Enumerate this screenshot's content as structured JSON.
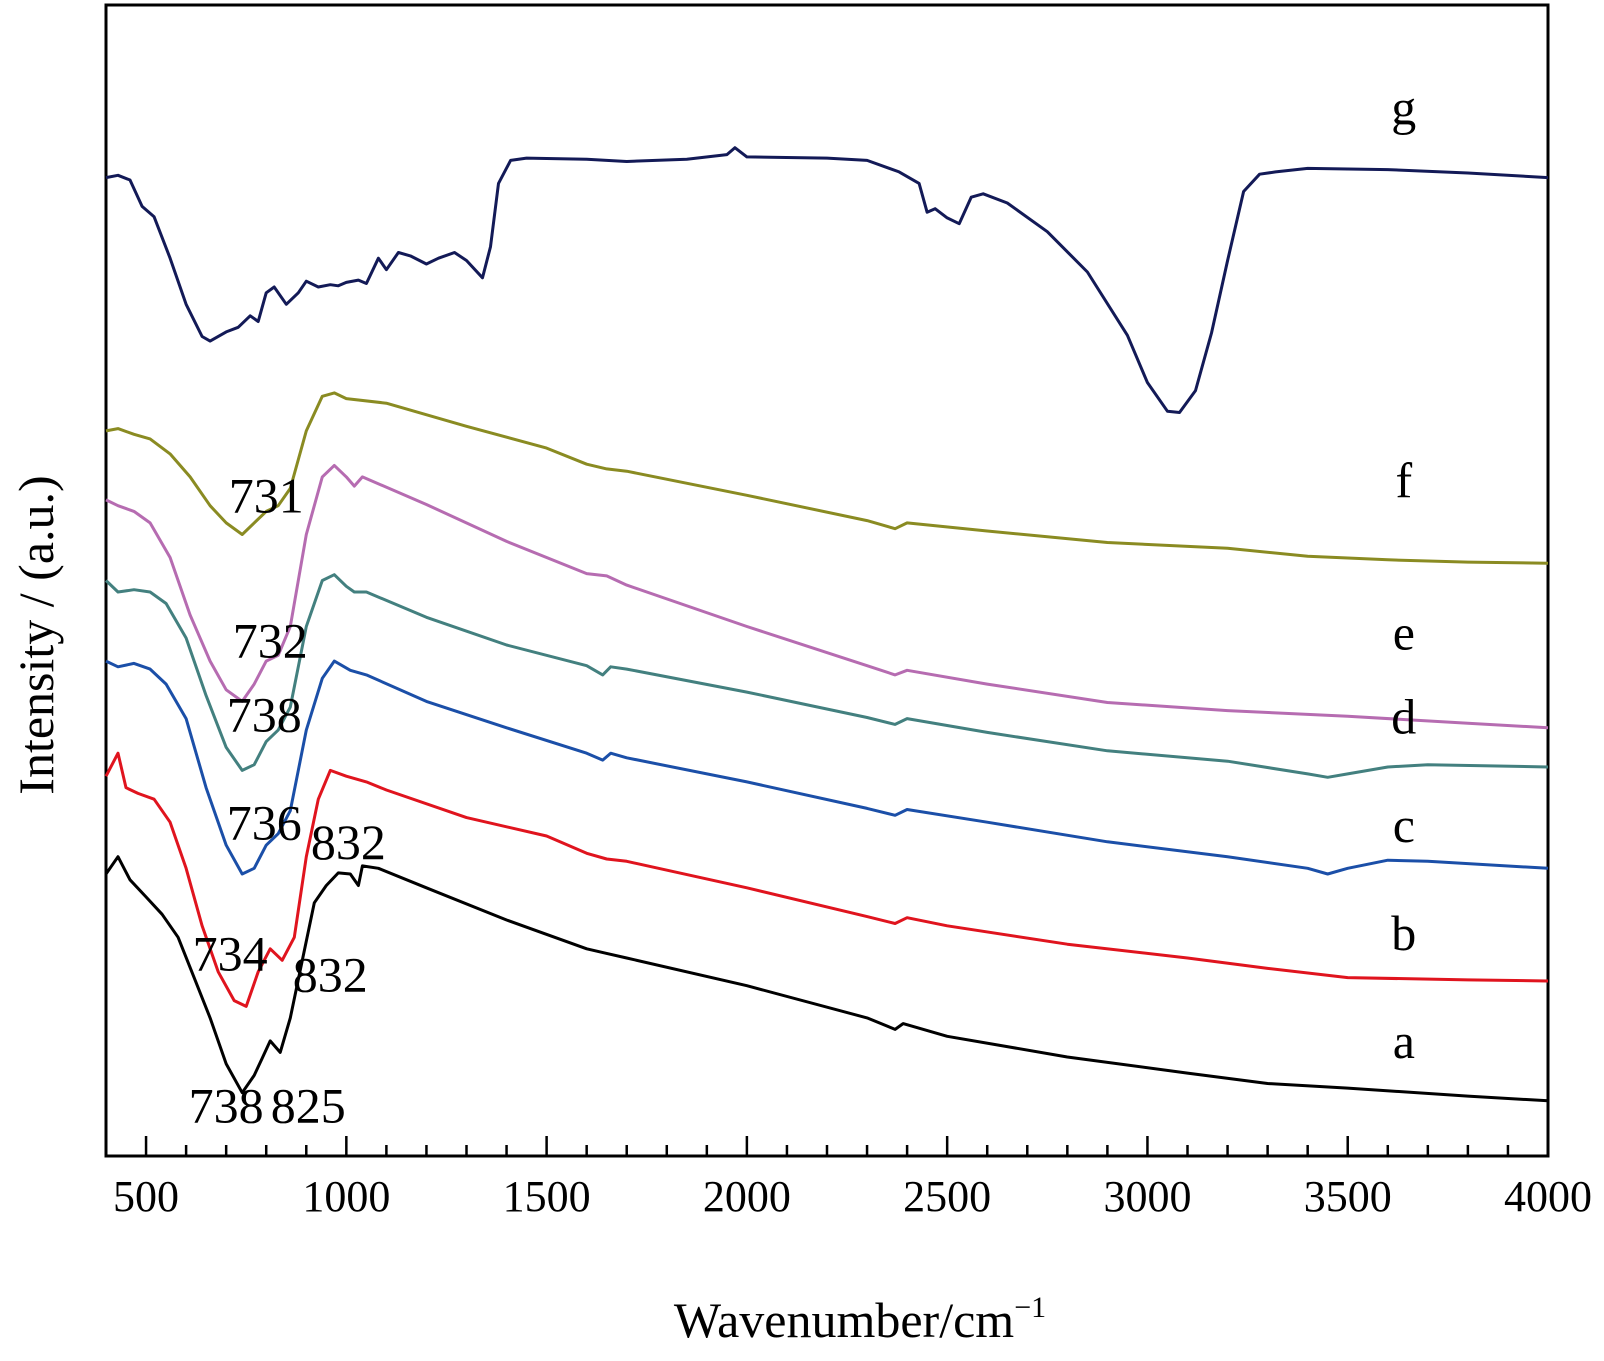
{
  "chart_data": {
    "type": "line",
    "title": "",
    "xlabel": "Wavenumber/cm",
    "xlabel_superscript": "−1",
    "ylabel": "Intensity / (a.u.)",
    "xlim": [
      400,
      4000
    ],
    "ylim": [
      0,
      100
    ],
    "x_ticks": [
      "500",
      "1000",
      "1500",
      "2000",
      "2500",
      "3000",
      "3500",
      "4000"
    ],
    "y_ticks": [],
    "grid": false,
    "series": [
      {
        "name": "a",
        "color": "#000000",
        "points": [
          [
            400,
            24.5
          ],
          [
            430,
            26
          ],
          [
            460,
            24
          ],
          [
            500,
            22.5
          ],
          [
            540,
            21
          ],
          [
            580,
            19
          ],
          [
            620,
            15.5
          ],
          [
            660,
            12
          ],
          [
            700,
            8
          ],
          [
            740,
            5.5
          ],
          [
            770,
            7
          ],
          [
            790,
            8.5
          ],
          [
            810,
            10
          ],
          [
            835,
            9
          ],
          [
            860,
            12
          ],
          [
            890,
            17
          ],
          [
            920,
            22
          ],
          [
            950,
            23.5
          ],
          [
            980,
            24.6
          ],
          [
            1010,
            24.5
          ],
          [
            1030,
            23.5
          ],
          [
            1040,
            25.2
          ],
          [
            1080,
            25
          ],
          [
            1200,
            23.3
          ],
          [
            1400,
            20.5
          ],
          [
            1600,
            18
          ],
          [
            1650,
            17.6
          ],
          [
            1700,
            17.2
          ],
          [
            2000,
            14.8
          ],
          [
            2300,
            12
          ],
          [
            2370,
            11
          ],
          [
            2390,
            11.5
          ],
          [
            2500,
            10.4
          ],
          [
            2800,
            8.6
          ],
          [
            3100,
            7.2
          ],
          [
            3300,
            6.3
          ],
          [
            3500,
            5.9
          ],
          [
            3800,
            5.2
          ],
          [
            4000,
            4.8
          ]
        ]
      },
      {
        "name": "b",
        "color": "#e0141e",
        "points": [
          [
            400,
            33
          ],
          [
            430,
            35
          ],
          [
            450,
            32
          ],
          [
            480,
            31.5
          ],
          [
            520,
            31
          ],
          [
            560,
            29
          ],
          [
            600,
            25
          ],
          [
            640,
            20
          ],
          [
            680,
            16
          ],
          [
            720,
            13.5
          ],
          [
            750,
            13
          ],
          [
            780,
            16
          ],
          [
            810,
            18
          ],
          [
            840,
            17
          ],
          [
            870,
            19
          ],
          [
            900,
            26
          ],
          [
            930,
            31
          ],
          [
            960,
            33.5
          ],
          [
            1000,
            33
          ],
          [
            1050,
            32.5
          ],
          [
            1100,
            31.8
          ],
          [
            1300,
            29.4
          ],
          [
            1500,
            27.8
          ],
          [
            1600,
            26.3
          ],
          [
            1650,
            25.8
          ],
          [
            1700,
            25.6
          ],
          [
            2000,
            23.3
          ],
          [
            2300,
            20.8
          ],
          [
            2370,
            20.2
          ],
          [
            2400,
            20.7
          ],
          [
            2500,
            20
          ],
          [
            2800,
            18.4
          ],
          [
            3100,
            17.2
          ],
          [
            3300,
            16.3
          ],
          [
            3500,
            15.5
          ],
          [
            3800,
            15.3
          ],
          [
            4000,
            15.2
          ]
        ]
      },
      {
        "name": "c",
        "color": "#1b4fa8",
        "points": [
          [
            400,
            43
          ],
          [
            430,
            42.5
          ],
          [
            470,
            42.8
          ],
          [
            510,
            42.3
          ],
          [
            550,
            41
          ],
          [
            600,
            38
          ],
          [
            650,
            32
          ],
          [
            700,
            27
          ],
          [
            740,
            24.5
          ],
          [
            770,
            25
          ],
          [
            800,
            27
          ],
          [
            830,
            28
          ],
          [
            860,
            30
          ],
          [
            900,
            37
          ],
          [
            940,
            41.5
          ],
          [
            970,
            43
          ],
          [
            1010,
            42.2
          ],
          [
            1050,
            41.8
          ],
          [
            1200,
            39.5
          ],
          [
            1400,
            37.2
          ],
          [
            1600,
            35
          ],
          [
            1640,
            34.4
          ],
          [
            1660,
            35
          ],
          [
            1700,
            34.6
          ],
          [
            2000,
            32.5
          ],
          [
            2300,
            30.2
          ],
          [
            2370,
            29.6
          ],
          [
            2400,
            30.1
          ],
          [
            2600,
            29
          ],
          [
            2900,
            27.3
          ],
          [
            3200,
            26
          ],
          [
            3400,
            25
          ],
          [
            3450,
            24.5
          ],
          [
            3500,
            25
          ],
          [
            3600,
            25.7
          ],
          [
            3700,
            25.6
          ],
          [
            4000,
            25
          ]
        ]
      },
      {
        "name": "d",
        "color": "#43807f",
        "points": [
          [
            400,
            50
          ],
          [
            430,
            49
          ],
          [
            470,
            49.2
          ],
          [
            510,
            49
          ],
          [
            550,
            48
          ],
          [
            600,
            45
          ],
          [
            650,
            40
          ],
          [
            700,
            35.5
          ],
          [
            740,
            33.5
          ],
          [
            770,
            34
          ],
          [
            800,
            36
          ],
          [
            830,
            37
          ],
          [
            860,
            39
          ],
          [
            900,
            46
          ],
          [
            940,
            50
          ],
          [
            970,
            50.5
          ],
          [
            1000,
            49.5
          ],
          [
            1020,
            49
          ],
          [
            1050,
            49
          ],
          [
            1200,
            46.8
          ],
          [
            1400,
            44.4
          ],
          [
            1600,
            42.6
          ],
          [
            1640,
            41.8
          ],
          [
            1660,
            42.5
          ],
          [
            1700,
            42.3
          ],
          [
            2000,
            40.3
          ],
          [
            2300,
            38.1
          ],
          [
            2370,
            37.5
          ],
          [
            2400,
            38
          ],
          [
            2600,
            36.8
          ],
          [
            2900,
            35.2
          ],
          [
            3200,
            34.3
          ],
          [
            3400,
            33.2
          ],
          [
            3450,
            32.9
          ],
          [
            3500,
            33.2
          ],
          [
            3600,
            33.8
          ],
          [
            3700,
            34
          ],
          [
            4000,
            33.8
          ]
        ]
      },
      {
        "name": "e",
        "color": "#b66cb1",
        "points": [
          [
            400,
            57
          ],
          [
            430,
            56.5
          ],
          [
            470,
            56
          ],
          [
            510,
            55
          ],
          [
            560,
            52
          ],
          [
            610,
            47
          ],
          [
            660,
            43
          ],
          [
            700,
            40.5
          ],
          [
            740,
            39.5
          ],
          [
            770,
            41
          ],
          [
            800,
            43
          ],
          [
            830,
            43.5
          ],
          [
            860,
            46
          ],
          [
            900,
            54
          ],
          [
            940,
            59
          ],
          [
            970,
            60
          ],
          [
            1000,
            59
          ],
          [
            1020,
            58.2
          ],
          [
            1040,
            59
          ],
          [
            1200,
            56.6
          ],
          [
            1400,
            53.4
          ],
          [
            1600,
            50.6
          ],
          [
            1650,
            50.4
          ],
          [
            1700,
            49.6
          ],
          [
            2000,
            46
          ],
          [
            2300,
            42.6
          ],
          [
            2370,
            41.8
          ],
          [
            2400,
            42.2
          ],
          [
            2600,
            41
          ],
          [
            2900,
            39.4
          ],
          [
            3200,
            38.7
          ],
          [
            3500,
            38.2
          ],
          [
            3800,
            37.6
          ],
          [
            4000,
            37.2
          ]
        ]
      },
      {
        "name": "f",
        "color": "#8a8b22",
        "points": [
          [
            400,
            63
          ],
          [
            430,
            63.2
          ],
          [
            470,
            62.7
          ],
          [
            510,
            62.3
          ],
          [
            560,
            61
          ],
          [
            610,
            59
          ],
          [
            660,
            56.5
          ],
          [
            700,
            55
          ],
          [
            740,
            54
          ],
          [
            770,
            55
          ],
          [
            800,
            56
          ],
          [
            830,
            56.5
          ],
          [
            860,
            58
          ],
          [
            900,
            63
          ],
          [
            940,
            66
          ],
          [
            970,
            66.3
          ],
          [
            1000,
            65.8
          ],
          [
            1100,
            65.4
          ],
          [
            1300,
            63.4
          ],
          [
            1500,
            61.5
          ],
          [
            1600,
            60.1
          ],
          [
            1650,
            59.7
          ],
          [
            1700,
            59.5
          ],
          [
            2000,
            57.4
          ],
          [
            2300,
            55.2
          ],
          [
            2370,
            54.5
          ],
          [
            2400,
            55
          ],
          [
            2600,
            54.3
          ],
          [
            2900,
            53.3
          ],
          [
            3200,
            52.8
          ],
          [
            3400,
            52.1
          ],
          [
            3600,
            51.8
          ],
          [
            3800,
            51.6
          ],
          [
            4000,
            51.5
          ]
        ]
      },
      {
        "name": "g",
        "color": "#131a57",
        "points": [
          [
            400,
            85
          ],
          [
            430,
            85.2
          ],
          [
            460,
            84.8
          ],
          [
            490,
            82.5
          ],
          [
            520,
            81.6
          ],
          [
            560,
            78
          ],
          [
            600,
            74
          ],
          [
            640,
            71.2
          ],
          [
            660,
            70.8
          ],
          [
            700,
            71.6
          ],
          [
            730,
            72
          ],
          [
            760,
            73
          ],
          [
            780,
            72.5
          ],
          [
            800,
            75
          ],
          [
            820,
            75.5
          ],
          [
            850,
            74
          ],
          [
            880,
            75
          ],
          [
            900,
            76
          ],
          [
            930,
            75.5
          ],
          [
            960,
            75.7
          ],
          [
            980,
            75.6
          ],
          [
            1000,
            75.9
          ],
          [
            1030,
            76.1
          ],
          [
            1050,
            75.8
          ],
          [
            1080,
            78
          ],
          [
            1100,
            77
          ],
          [
            1130,
            78.5
          ],
          [
            1160,
            78.2
          ],
          [
            1200,
            77.5
          ],
          [
            1230,
            78
          ],
          [
            1270,
            78.5
          ],
          [
            1300,
            77.8
          ],
          [
            1340,
            76.3
          ],
          [
            1360,
            79
          ],
          [
            1380,
            84.5
          ],
          [
            1410,
            86.5
          ],
          [
            1450,
            86.7
          ],
          [
            1600,
            86.6
          ],
          [
            1700,
            86.4
          ],
          [
            1850,
            86.6
          ],
          [
            1950,
            87
          ],
          [
            1970,
            87.6
          ],
          [
            2000,
            86.8
          ],
          [
            2200,
            86.7
          ],
          [
            2300,
            86.5
          ],
          [
            2380,
            85.5
          ],
          [
            2430,
            84.5
          ],
          [
            2450,
            82
          ],
          [
            2470,
            82.3
          ],
          [
            2500,
            81.5
          ],
          [
            2530,
            81
          ],
          [
            2560,
            83.3
          ],
          [
            2590,
            83.6
          ],
          [
            2650,
            82.8
          ],
          [
            2750,
            80.3
          ],
          [
            2850,
            76.8
          ],
          [
            2950,
            71.3
          ],
          [
            3000,
            67.2
          ],
          [
            3050,
            64.7
          ],
          [
            3080,
            64.6
          ],
          [
            3120,
            66.5
          ],
          [
            3160,
            71.5
          ],
          [
            3200,
            77.8
          ],
          [
            3240,
            83.8
          ],
          [
            3280,
            85.3
          ],
          [
            3320,
            85.5
          ],
          [
            3400,
            85.8
          ],
          [
            3600,
            85.7
          ],
          [
            3800,
            85.4
          ],
          [
            4000,
            85
          ]
        ]
      }
    ],
    "series_label_positions": {
      "a": [
        3640,
        8.5
      ],
      "b": [
        3640,
        17.9
      ],
      "c": [
        3640,
        27.3
      ],
      "d": [
        3640,
        36.7
      ],
      "e": [
        3640,
        44
      ],
      "f": [
        3640,
        57.2
      ],
      "g": [
        3640,
        89.6
      ]
    },
    "annotations": [
      {
        "text": "731",
        "x": 800,
        "y": 55.9
      },
      {
        "text": "732",
        "x": 810,
        "y": 43.3
      },
      {
        "text": "738",
        "x": 795,
        "y": 36.9
      },
      {
        "text": "736",
        "x": 795,
        "y": 27.5
      },
      {
        "text": "832",
        "x": 1005,
        "y": 25.8
      },
      {
        "text": "734",
        "x": 710,
        "y": 16.1
      },
      {
        "text": "832",
        "x": 960,
        "y": 14.3
      },
      {
        "text": "738",
        "x": 700,
        "y": 2.9
      },
      {
        "text": "825",
        "x": 905,
        "y": 2.9
      }
    ]
  }
}
